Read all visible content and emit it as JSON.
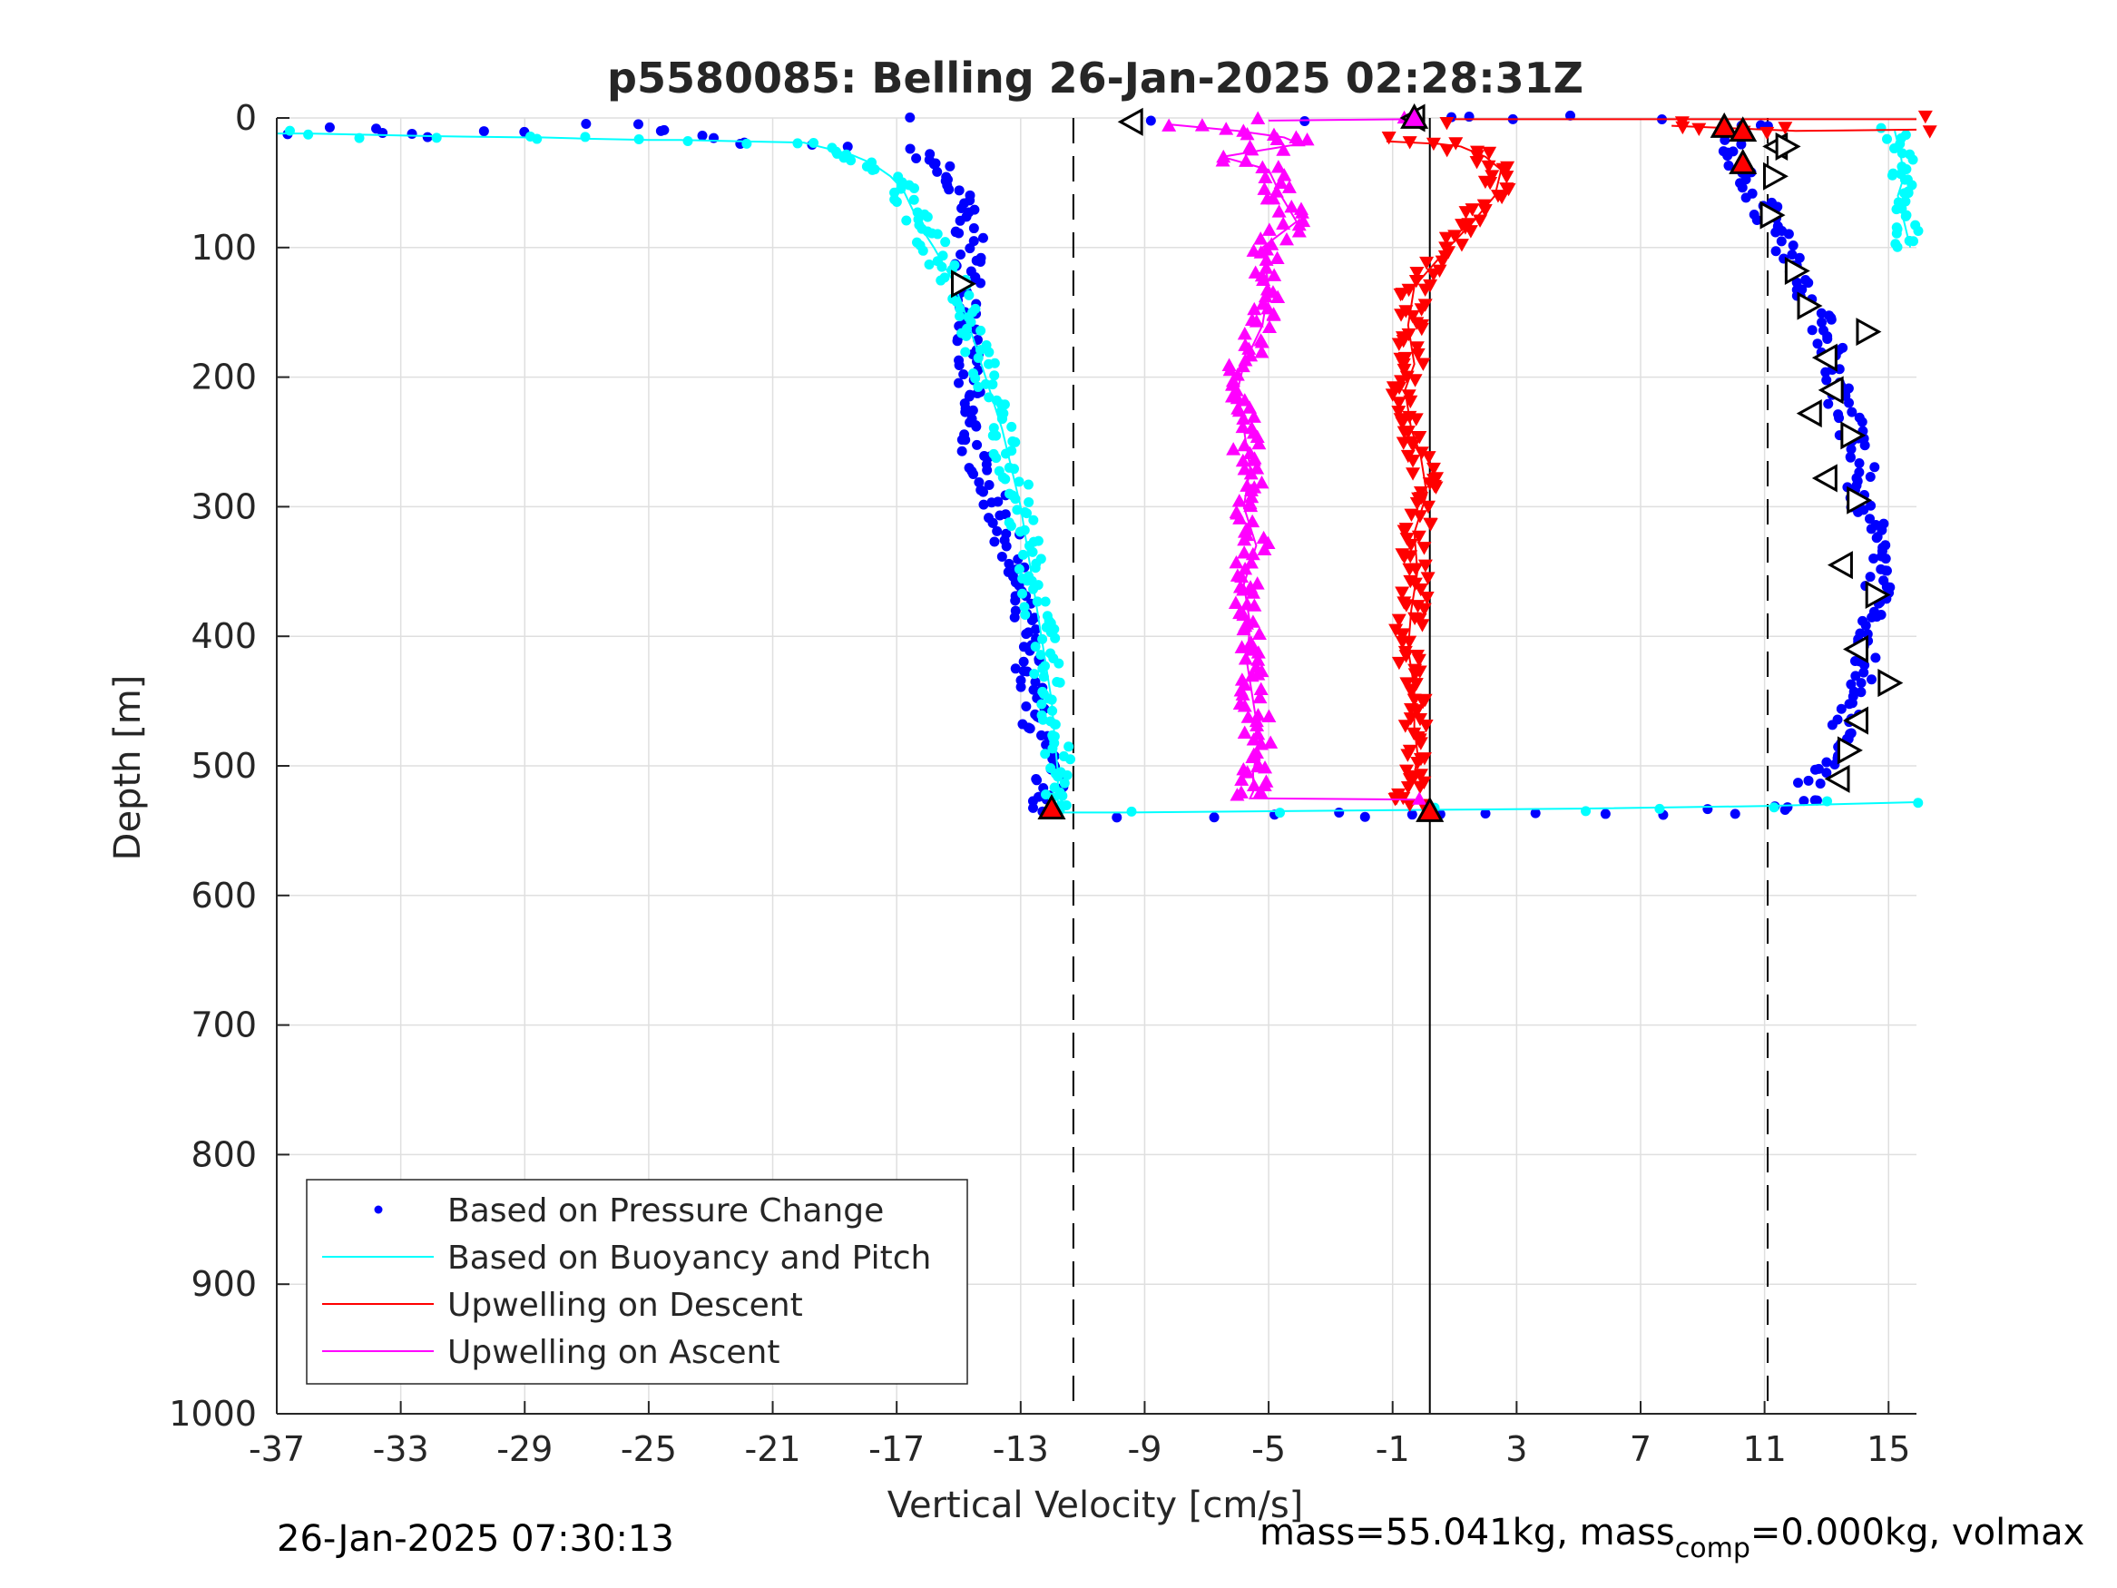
{
  "chart_data": {
    "type": "scatter",
    "title": "p5580085: Belling 26-Jan-2025 02:28:31Z",
    "xlabel": "Vertical Velocity [cm/s]",
    "ylabel": "Depth [m]",
    "xlim": [
      -37,
      15.9
    ],
    "ylim": [
      0,
      1000
    ],
    "y_reversed": true,
    "grid": true,
    "x_ticks": [
      -37,
      -33,
      -29,
      -25,
      -21,
      -17,
      -13,
      -9,
      -5,
      -1,
      3,
      7,
      11,
      15
    ],
    "x_tick_labels": [
      "-37",
      "-33",
      "-29",
      "-25",
      "-21",
      "-17",
      "-13",
      "-9",
      "-5",
      "-1",
      "3",
      "7",
      "11",
      "15"
    ],
    "y_ticks": [
      0,
      100,
      200,
      300,
      400,
      500,
      600,
      700,
      800,
      900,
      1000
    ],
    "y_tick_labels": [
      "0",
      "100",
      "200",
      "300",
      "400",
      "500",
      "600",
      "700",
      "800",
      "900",
      "1000"
    ],
    "legend": {
      "placement": "bottom-left"
    },
    "reference_lines": [
      {
        "x": -11.3,
        "style": "dashed"
      },
      {
        "x": 0.2,
        "style": "solid"
      },
      {
        "x": 11.1,
        "style": "dashed"
      }
    ],
    "series": [
      {
        "name": "Based on Pressure Change",
        "color": "#0000ff",
        "style": "dots",
        "segments": [
          {
            "x": [
              -36.2,
              -34.0,
              -32.3,
              -25.5,
              -21.8,
              -16.5,
              -15.8,
              -15.5,
              -15.0,
              -14.8,
              -14.6,
              -14.7,
              -14.5,
              -14.8,
              -14.7,
              -14.8,
              -14.6,
              -14.2,
              -13.8,
              -13.4,
              -13.2,
              -12.9,
              -12.8,
              -12.7,
              -12.7,
              -12.5,
              -12.3,
              -12.2,
              -12.0,
              -12.2,
              -12.3
            ],
            "y": [
              10,
              8,
              14,
              5,
              20,
              25,
              35,
              45,
              60,
              80,
              100,
              120,
              150,
              180,
              200,
              220,
              250,
              275,
              300,
              330,
              360,
              390,
              410,
              430,
              450,
              470,
              490,
              505,
              520,
              530,
              535
            ]
          },
          {
            "x": [
              -12.0,
              -10.0,
              -7.0,
              -5.0,
              -3.0,
              -1.5,
              -0.5,
              0.5,
              2.0,
              4.0,
              6.0,
              8.0,
              9.5,
              10.5,
              11.5,
              12.0,
              12.5
            ],
            "y": [
              537,
              537,
              537,
              537,
              538,
              538,
              538,
              538,
              539,
              539,
              538,
              537,
              536,
              535,
              533,
              530,
              527
            ]
          },
          {
            "x": [
              12.5,
              13.0,
              13.6,
              13.8,
              14.1,
              14.3,
              14.5,
              14.6,
              14.7,
              14.5,
              14.2,
              14.0,
              14.2,
              13.8,
              13.4,
              13.3,
              13.1,
              12.9,
              12.5,
              12.1,
              11.6,
              11.2,
              10.8,
              10.3,
              9.9,
              10.4,
              11.3
            ],
            "y": [
              515,
              495,
              470,
              450,
              430,
              410,
              390,
              365,
              340,
              320,
              300,
              280,
              260,
              240,
              220,
              200,
              180,
              160,
              140,
              120,
              100,
              80,
              60,
              40,
              20,
              10,
              3
            ]
          },
          {
            "x": [
              -16.2,
              -9.0,
              -4.0,
              0.5,
              1.7,
              3.0,
              5.0,
              8.0
            ],
            "y": [
              2,
              1,
              2,
              2,
              1,
              2,
              1,
              1
            ]
          }
        ]
      },
      {
        "name": "Based on Buoyancy and Pitch",
        "color": "#00ffff",
        "style": "line+dots",
        "segments": [
          {
            "x": [
              -37.0,
              -36.0,
              -32.0,
              -29.0,
              -28.5,
              -27.0,
              -25.0,
              -24.0,
              -22.0,
              -20.0,
              -19.5,
              -18.5,
              -17.8,
              -17.2,
              -16.8,
              -16.5,
              -16.2,
              -15.8,
              -15.2,
              -14.8,
              -14.4,
              -14.0,
              -13.6,
              -13.3,
              -13.0,
              -12.8,
              -12.6,
              -12.4,
              -12.2,
              -12.0,
              -11.9,
              -11.8,
              -11.8,
              -11.8
            ],
            "y": [
              12,
              12,
              14,
              15,
              15,
              16,
              17,
              17,
              18,
              19,
              22,
              28,
              35,
              45,
              55,
              70,
              85,
              100,
              125,
              150,
              180,
              210,
              240,
              270,
              300,
              330,
              360,
              390,
              420,
              450,
              480,
              505,
              520,
              530
            ]
          },
          {
            "x": [
              -12.0,
              -9.5,
              -5.0,
              0.0,
              5.0,
              11.0,
              15.9
            ],
            "y": [
              536,
              536,
              535,
              534,
              533,
              531,
              528
            ]
          },
          {
            "x": [
              15.2,
              15.4,
              15.5,
              15.3,
              15.5,
              15.6,
              15.7
            ],
            "y": [
              10,
              30,
              45,
              60,
              80,
              90,
              100
            ]
          }
        ]
      },
      {
        "name": "Upwelling on Descent",
        "color": "#ff0000",
        "style": "line+down-triangles",
        "segments": [
          {
            "x": [
              -1.2,
              0.5,
              1.2,
              2.0,
              2.5,
              2.3,
              1.6,
              0.8,
              -0.3,
              -0.5,
              -0.3,
              -0.6,
              -0.4,
              -0.1,
              0.1,
              -0.3,
              -0.2,
              -0.4,
              -0.5,
              -0.3,
              -0.3,
              -0.2,
              -0.3,
              -0.6,
              -0.3
            ],
            "y": [
              18,
              20,
              22,
              30,
              40,
              60,
              80,
              100,
              130,
              160,
              190,
              210,
              240,
              260,
              290,
              320,
              350,
              380,
              410,
              440,
              470,
              490,
              510,
              525,
              530
            ]
          },
          {
            "x": [
              8.0,
              10.0,
              12.0,
              15.9
            ],
            "y": [
              6,
              8,
              10,
              9
            ]
          },
          {
            "x": [
              1.0,
              8.0,
              15.9
            ],
            "y": [
              1,
              1,
              1
            ]
          }
        ]
      },
      {
        "name": "Upwelling on Ascent",
        "color": "#ff00ff",
        "style": "line+up-triangles",
        "segments": [
          {
            "x": [
              -8.2,
              -6.0,
              -4.5,
              -4.0,
              -6.5,
              -5.0,
              -4.6,
              -4.1,
              -5.2,
              -5.0,
              -5.2,
              -5.8,
              -6.0,
              -5.8,
              -5.6,
              -5.8,
              -5.4,
              -5.8,
              -5.6,
              -5.7,
              -5.5,
              -5.3,
              -5.5,
              -5.5,
              -5.6,
              -0.3
            ],
            "y": [
              5,
              10,
              15,
              20,
              30,
              40,
              60,
              80,
              100,
              130,
              160,
              190,
              210,
              240,
              270,
              300,
              330,
              360,
              390,
              420,
              450,
              480,
              505,
              520,
              525,
              526
            ]
          },
          {
            "x": [
              -5.0,
              -0.5
            ],
            "y": [
              2,
              1
            ]
          }
        ]
      }
    ],
    "markers": [
      {
        "shape": "triangle-left",
        "color": "#ffffff",
        "points": [
          [
            -9.4,
            3
          ],
          [
            -0.3,
            0
          ],
          [
            11.4,
            22
          ],
          [
            13.0,
            185
          ],
          [
            13.2,
            210
          ],
          [
            12.5,
            228
          ],
          [
            13.0,
            278
          ],
          [
            13.5,
            345
          ],
          [
            14.0,
            410
          ],
          [
            14.0,
            465
          ],
          [
            13.4,
            510
          ]
        ]
      },
      {
        "shape": "triangle-right",
        "color": "#ffffff",
        "points": [
          [
            -14.9,
            128
          ],
          [
            11.7,
            22
          ],
          [
            11.3,
            45
          ],
          [
            11.2,
            75
          ],
          [
            12.0,
            118
          ],
          [
            12.4,
            145
          ],
          [
            14.3,
            165
          ],
          [
            13.8,
            245
          ],
          [
            14.0,
            295
          ],
          [
            14.6,
            368
          ],
          [
            15.0,
            436
          ],
          [
            13.7,
            488
          ]
        ]
      },
      {
        "shape": "triangle-up",
        "color": "#ff0000",
        "points": [
          [
            9.7,
            7
          ],
          [
            10.3,
            10
          ],
          [
            10.3,
            35
          ],
          [
            0.2,
            535
          ],
          [
            -12.0,
            533
          ]
        ]
      },
      {
        "shape": "triangle-up",
        "color": "#ff00ff",
        "points": [
          [
            -0.3,
            0
          ]
        ]
      }
    ]
  },
  "footer": {
    "timestamp": "26-Jan-2025 07:30:13",
    "mass_text": "mass=55.041kg, mass",
    "sub_text": "comp",
    "after_sub_text": "=0.000kg, volmax"
  }
}
